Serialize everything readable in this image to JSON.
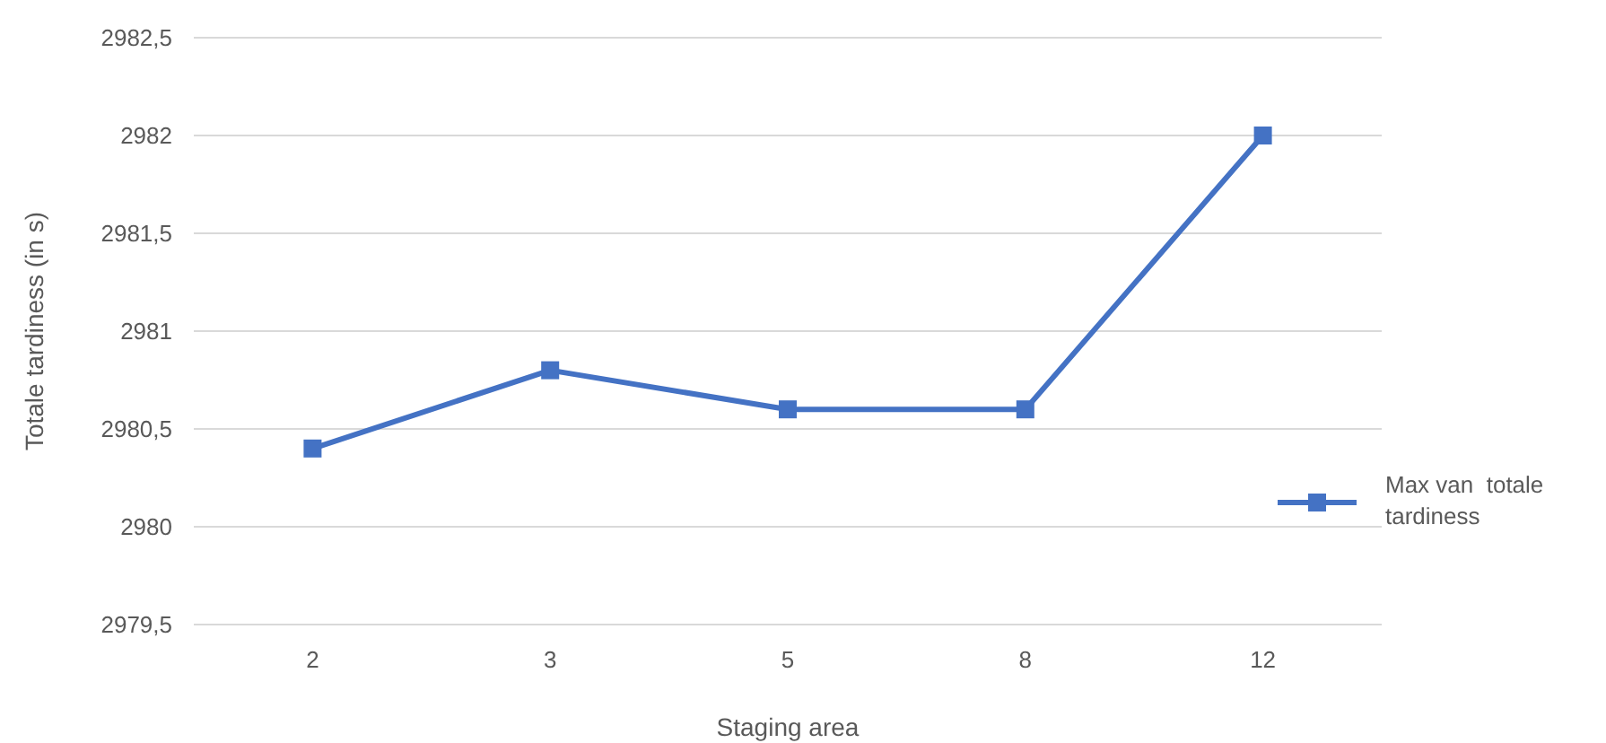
{
  "chart_data": {
    "type": "line",
    "xlabel": "Staging area",
    "ylabel": "Totale tardiness (in s)",
    "categories": [
      "2",
      "3",
      "5",
      "8",
      "12"
    ],
    "series": [
      {
        "name": "Max van  totale tardiness",
        "color": "#4472c4",
        "values": [
          2980.4,
          2980.8,
          2980.6,
          2980.6,
          2982
        ]
      }
    ],
    "ylim": [
      2979.5,
      2982.5
    ],
    "yticks": [
      {
        "value": 2979.5,
        "label": "2979,5"
      },
      {
        "value": 2980,
        "label": "2980"
      },
      {
        "value": 2980.5,
        "label": "2980,5"
      },
      {
        "value": 2981,
        "label": "2981"
      },
      {
        "value": 2981.5,
        "label": "2981,5"
      },
      {
        "value": 2982,
        "label": "2982"
      },
      {
        "value": 2982.5,
        "label": "2982,5"
      }
    ],
    "grid": "y",
    "legend": "right",
    "marker": "square",
    "line_style": "solid"
  }
}
